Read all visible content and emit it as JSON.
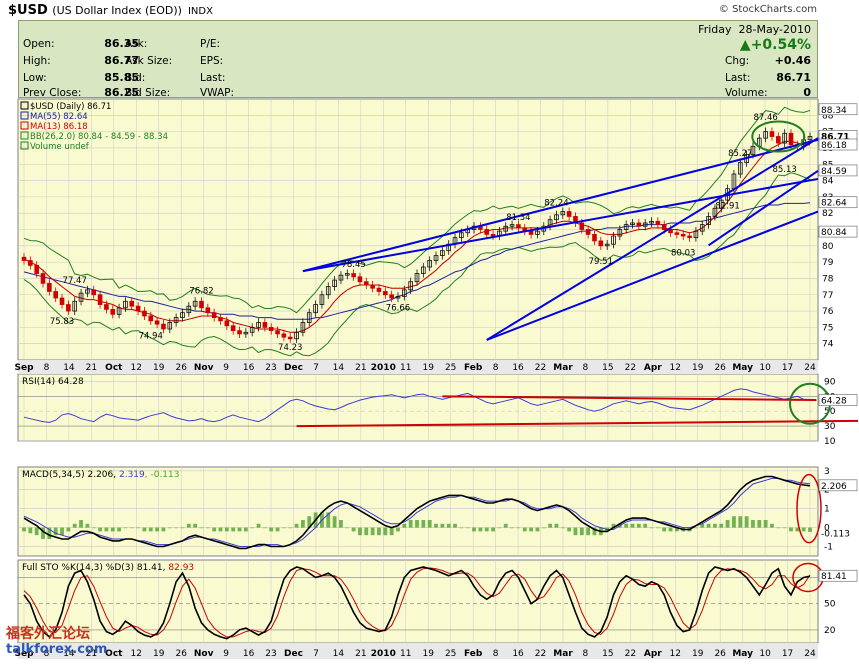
{
  "header": {
    "symbol": "$USD",
    "description": "(US Dollar Index (EOD))",
    "exchange": "INDX",
    "copyright": "© StockCharts.com"
  },
  "quote": {
    "day": "Friday",
    "date": "28-May-2010",
    "change_pct": "▲+0.54%",
    "left": [
      {
        "label": "Open:",
        "value": "86.35"
      },
      {
        "label": "High:",
        "value": "86.77"
      },
      {
        "label": "Low:",
        "value": "85.85"
      },
      {
        "label": "Prev Close:",
        "value": "86.25"
      }
    ],
    "mid": [
      {
        "label": "Ask:"
      },
      {
        "label": "Ask Size:"
      },
      {
        "label": "Bid:"
      },
      {
        "label": "Bid Size:"
      }
    ],
    "mid2": [
      {
        "label": "P/E:"
      },
      {
        "label": "EPS:"
      },
      {
        "label": "Last:"
      },
      {
        "label": "VWAP:"
      }
    ],
    "right": [
      {
        "label": "Chg:",
        "value": "+0.46"
      },
      {
        "label": "Last:",
        "value": "86.71"
      },
      {
        "label": "Volume:",
        "value": "0"
      }
    ]
  },
  "colors": {
    "panel_bg": "#fafad0",
    "grid": "#c8c8c8",
    "price_up": "#111111",
    "price_down": "#d00000",
    "ma55": "#2020a0",
    "ma13": "#d00000",
    "bb": "#208020",
    "trend": "#0000e0",
    "rsi": "#3a3ad8",
    "macd": "#000000",
    "signal": "#3a3ad8",
    "hist": "#50a030",
    "sto_k": "#000000",
    "sto_d": "#d00000",
    "red_line": "#d00000",
    "circle_green": "#208020",
    "circle_red": "#d00000"
  },
  "chart_data": [
    {
      "type": "candlestick",
      "title": "$USD (Daily) 86.71",
      "legend": [
        {
          "text": "$USD (Daily) 86.71",
          "color": "#000000"
        },
        {
          "text": "MA(55) 82.64",
          "color": "#2020a0"
        },
        {
          "text": "MA(13) 86.18",
          "color": "#d00000"
        },
        {
          "text": "BB(26,2.0) 80.84 - 84.59 - 88.34",
          "color": "#208020"
        },
        {
          "text": "Volume undef",
          "color": "#208020"
        }
      ],
      "ylim": [
        73,
        89
      ],
      "y_ticks": [
        74,
        75,
        76,
        77,
        78,
        79,
        80,
        81,
        82,
        83,
        84,
        85,
        86,
        87,
        88
      ],
      "x_labels": [
        "Sep",
        "8",
        "14",
        "21",
        "Oct",
        "12",
        "19",
        "26",
        "Nov",
        "9",
        "16",
        "23",
        "Dec",
        "7",
        "14",
        "21",
        "2010",
        "11",
        "19",
        "25",
        "Feb",
        "8",
        "16",
        "22",
        "Mar",
        "8",
        "15",
        "22",
        "Apr",
        "12",
        "19",
        "26",
        "May",
        "10",
        "17",
        "24"
      ],
      "right_labels": [
        "88.34",
        "86.71",
        "86.18",
        "84.59",
        "82.64",
        "80.84"
      ],
      "annotations": [
        {
          "text": "77.47",
          "x": "Oct",
          "y": 77.47
        },
        {
          "text": "75.83",
          "x": "Oct 7",
          "y": 75.83
        },
        {
          "text": "76.82",
          "x": "Nov 4",
          "y": 76.82
        },
        {
          "text": "74.94",
          "x": "Oct 23",
          "y": 74.94
        },
        {
          "text": "74.23",
          "x": "Nov 26",
          "y": 74.23
        },
        {
          "text": "78.45",
          "x": "Dec 17",
          "y": 78.45
        },
        {
          "text": "76.66",
          "x": "Jan 14",
          "y": 76.66
        },
        {
          "text": "81.34",
          "x": "Feb 16",
          "y": 81.34
        },
        {
          "text": "82.24",
          "x": "Mar 3",
          "y": 82.24
        },
        {
          "text": "79.51",
          "x": "Mar 18",
          "y": 79.51
        },
        {
          "text": "80.03",
          "x": "Apr 15",
          "y": 80.03
        },
        {
          "text": "82.91",
          "x": "May 4",
          "y": 82.91
        },
        {
          "text": "85.27",
          "x": "May 12",
          "y": 85.27
        },
        {
          "text": "87.46",
          "x": "May 18",
          "y": 87.46
        },
        {
          "text": "85.13",
          "x": "May 21",
          "y": 85.13
        }
      ],
      "close": [
        79.1,
        78.8,
        78.3,
        77.7,
        77.2,
        76.8,
        76.4,
        76.0,
        76.6,
        77.1,
        77.3,
        77.0,
        76.4,
        76.1,
        75.8,
        76.2,
        76.6,
        76.3,
        76.0,
        75.7,
        75.4,
        75.2,
        74.9,
        75.3,
        75.6,
        75.9,
        76.3,
        76.6,
        76.2,
        75.9,
        75.6,
        75.4,
        75.1,
        74.8,
        74.6,
        74.7,
        75.0,
        75.3,
        75.0,
        74.8,
        74.6,
        74.4,
        74.3,
        74.7,
        75.3,
        75.9,
        76.4,
        77.0,
        77.5,
        77.9,
        78.2,
        78.3,
        78.1,
        77.8,
        77.6,
        77.4,
        77.2,
        77.0,
        76.8,
        76.9,
        77.3,
        77.8,
        78.3,
        78.7,
        79.1,
        79.4,
        79.7,
        80.1,
        80.5,
        80.8,
        81.0,
        81.2,
        81.0,
        80.7,
        80.6,
        80.9,
        81.2,
        81.3,
        81.1,
        80.9,
        80.7,
        80.9,
        81.2,
        81.6,
        81.9,
        82.1,
        81.8,
        81.4,
        81.0,
        80.7,
        80.3,
        80.0,
        80.1,
        80.6,
        81.0,
        81.3,
        81.4,
        81.2,
        81.4,
        81.5,
        81.3,
        81.0,
        80.8,
        80.7,
        80.6,
        80.5,
        80.9,
        81.3,
        81.8,
        82.3,
        82.8,
        83.5,
        84.4,
        85.1,
        85.6,
        86.1,
        86.6,
        87.0,
        86.7,
        86.3,
        86.9,
        86.2,
        86.1,
        86.5,
        86.7
      ],
      "ma13": [
        79.2,
        79.0,
        78.8,
        78.5,
        78.1,
        77.8,
        77.5,
        77.2,
        76.9,
        76.8,
        76.7,
        76.7,
        76.6,
        76.5,
        76.4,
        76.2,
        76.1,
        76.1,
        76.0,
        75.9,
        75.8,
        75.6,
        75.5,
        75.4,
        75.4,
        75.4,
        75.5,
        75.6,
        75.7,
        75.7,
        75.7,
        75.6,
        75.5,
        75.3,
        75.2,
        75.1,
        75.0,
        74.9,
        74.9,
        74.9,
        74.9,
        74.8,
        74.7,
        74.7,
        74.8,
        75.0,
        75.3,
        75.7,
        76.1,
        76.6,
        77.0,
        77.3,
        77.5,
        77.6,
        77.6,
        77.6,
        77.6,
        77.5,
        77.4,
        77.4,
        77.4,
        77.5,
        77.6,
        77.9,
        78.2,
        78.5,
        78.9,
        79.2,
        79.6,
        79.9,
        80.3,
        80.6,
        80.8,
        80.9,
        81.0,
        81.0,
        81.1,
        81.1,
        81.1,
        81.1,
        81.1,
        81.1,
        81.1,
        81.3,
        81.4,
        81.5,
        81.5,
        81.4,
        81.3,
        81.2,
        81.0,
        80.8,
        80.7,
        80.7,
        80.7,
        80.8,
        80.9,
        81.0,
        81.0,
        81.1,
        81.1,
        81.1,
        81.0,
        81.0,
        80.9,
        80.8,
        80.9,
        81.1,
        81.4,
        81.8,
        82.2,
        82.7,
        83.2,
        83.8,
        84.3,
        84.8,
        85.3,
        85.7,
        86.0,
        86.2,
        86.4,
        86.4,
        86.3,
        86.2,
        86.18
      ],
      "ma55": [
        78.4,
        78.3,
        78.2,
        78.1,
        78.0,
        77.9,
        77.8,
        77.7,
        77.6,
        77.5,
        77.4,
        77.3,
        77.2,
        77.1,
        77.0,
        76.9,
        76.9,
        76.8,
        76.7,
        76.6,
        76.6,
        76.5,
        76.4,
        76.3,
        76.2,
        76.1,
        76.1,
        76.0,
        76.0,
        75.9,
        75.9,
        75.8,
        75.8,
        75.8,
        75.7,
        75.7,
        75.7,
        75.6,
        75.6,
        75.6,
        75.5,
        75.5,
        75.5,
        75.5,
        75.5,
        75.5,
        75.6,
        75.6,
        75.7,
        75.8,
        75.9,
        76.0,
        76.1,
        76.2,
        76.3,
        76.4,
        76.5,
        76.6,
        76.7,
        76.9,
        77.0,
        77.2,
        77.3,
        77.5,
        77.6,
        77.8,
        78.0,
        78.2,
        78.4,
        78.5,
        78.7,
        78.9,
        79.1,
        79.2,
        79.4,
        79.5,
        79.7,
        79.8,
        79.9,
        80.0,
        80.1,
        80.2,
        80.3,
        80.4,
        80.5,
        80.6,
        80.7,
        80.8,
        80.9,
        80.9,
        81.0,
        81.0,
        81.1,
        81.1,
        81.1,
        81.2,
        81.2,
        81.2,
        81.3,
        81.3,
        81.3,
        81.3,
        81.4,
        81.4,
        81.4,
        81.4,
        81.5,
        81.5,
        81.6,
        81.7,
        81.8,
        81.9,
        82.0,
        82.1,
        82.2,
        82.3,
        82.4,
        82.5,
        82.5,
        82.5,
        82.6,
        82.6,
        82.6,
        82.6,
        82.64
      ],
      "trendlines": [
        {
          "x1": 73,
          "y1": 74.23,
          "x2": 140,
          "y2": 86.6
        },
        {
          "x1": 73,
          "y1": 74.23,
          "x2": 140,
          "y2": 82.1
        },
        {
          "x1": 44,
          "y1": 78.45,
          "x2": 140,
          "y2": 84.1
        },
        {
          "x1": 44,
          "y1": 78.45,
          "x2": 140,
          "y2": 86.5
        },
        {
          "x1": 108,
          "y1": 80.03,
          "x2": 140,
          "y2": 84.6
        }
      ]
    },
    {
      "type": "line",
      "title": "RSI(14) 64.28",
      "ylim": [
        10,
        100
      ],
      "y_ticks": [
        90,
        70,
        50,
        30,
        10
      ],
      "right_labels": [
        "64.28"
      ],
      "values": [
        42,
        40,
        38,
        36,
        35,
        38,
        45,
        47,
        44,
        40,
        38,
        36,
        42,
        46,
        44,
        41,
        40,
        39,
        38,
        41,
        44,
        46,
        48,
        44,
        41,
        39,
        37,
        38,
        40,
        37,
        36,
        38,
        42,
        45,
        42,
        40,
        38,
        36,
        40,
        46,
        52,
        58,
        64,
        66,
        64,
        60,
        57,
        55,
        53,
        52,
        55,
        59,
        62,
        65,
        67,
        69,
        70,
        71,
        72,
        70,
        68,
        70,
        72,
        73,
        70,
        68,
        66,
        68,
        70,
        72,
        74,
        70,
        66,
        62,
        60,
        62,
        64,
        66,
        68,
        64,
        60,
        58,
        60,
        62,
        64,
        66,
        62,
        58,
        55,
        52,
        50,
        52,
        56,
        60,
        62,
        64,
        62,
        60,
        62,
        63,
        61,
        58,
        55,
        54,
        53,
        52,
        55,
        58,
        62,
        66,
        70,
        74,
        78,
        80,
        79,
        76,
        74,
        72,
        70,
        68,
        66,
        68,
        70,
        66,
        65,
        64.28
      ]
    },
    {
      "type": "line",
      "title": "MACD(5,34,5) 2.206, 2.319, -0.113",
      "ylim": [
        -1.5,
        3.2
      ],
      "y_ticks": [
        3,
        2,
        1,
        0,
        -1
      ],
      "right_labels": [
        "2.206",
        "-0.113"
      ],
      "macd": [
        0.5,
        0.3,
        0.1,
        -0.2,
        -0.4,
        -0.5,
        -0.6,
        -0.6,
        -0.4,
        -0.2,
        -0.2,
        -0.3,
        -0.5,
        -0.6,
        -0.7,
        -0.7,
        -0.6,
        -0.6,
        -0.7,
        -0.8,
        -0.9,
        -1.0,
        -1.0,
        -0.9,
        -0.8,
        -0.7,
        -0.5,
        -0.4,
        -0.5,
        -0.6,
        -0.7,
        -0.8,
        -0.9,
        -1.0,
        -1.1,
        -1.1,
        -1.0,
        -0.9,
        -0.9,
        -1.0,
        -1.0,
        -1.0,
        -0.9,
        -0.7,
        -0.4,
        0.0,
        0.4,
        0.8,
        1.1,
        1.3,
        1.4,
        1.3,
        1.1,
        0.9,
        0.7,
        0.5,
        0.3,
        0.1,
        0.0,
        0.1,
        0.4,
        0.7,
        1.0,
        1.2,
        1.4,
        1.5,
        1.6,
        1.7,
        1.7,
        1.7,
        1.6,
        1.5,
        1.4,
        1.3,
        1.3,
        1.4,
        1.5,
        1.5,
        1.4,
        1.2,
        1.0,
        0.9,
        1.0,
        1.1,
        1.2,
        1.1,
        0.9,
        0.6,
        0.3,
        0.1,
        -0.1,
        -0.2,
        -0.2,
        0.0,
        0.2,
        0.4,
        0.5,
        0.5,
        0.5,
        0.4,
        0.3,
        0.2,
        0.1,
        0.0,
        -0.1,
        -0.1,
        0.1,
        0.3,
        0.5,
        0.7,
        0.9,
        1.2,
        1.6,
        2.0,
        2.3,
        2.5,
        2.6,
        2.7,
        2.7,
        2.6,
        2.5,
        2.4,
        2.3,
        2.25,
        2.206
      ],
      "signal": [
        0.6,
        0.45,
        0.3,
        0.1,
        -0.1,
        -0.3,
        -0.4,
        -0.5,
        -0.5,
        -0.4,
        -0.3,
        -0.3,
        -0.4,
        -0.5,
        -0.6,
        -0.6,
        -0.6,
        -0.6,
        -0.7,
        -0.7,
        -0.8,
        -0.9,
        -0.9,
        -0.9,
        -0.8,
        -0.7,
        -0.6,
        -0.5,
        -0.5,
        -0.6,
        -0.6,
        -0.7,
        -0.8,
        -0.9,
        -1.0,
        -1.0,
        -1.0,
        -1.0,
        -0.9,
        -0.9,
        -0.9,
        -1.0,
        -0.9,
        -0.8,
        -0.6,
        -0.3,
        0.0,
        0.4,
        0.7,
        1.0,
        1.2,
        1.3,
        1.2,
        1.1,
        0.9,
        0.7,
        0.5,
        0.3,
        0.2,
        0.2,
        0.3,
        0.5,
        0.8,
        1.0,
        1.2,
        1.4,
        1.5,
        1.6,
        1.6,
        1.7,
        1.6,
        1.6,
        1.5,
        1.4,
        1.4,
        1.4,
        1.4,
        1.5,
        1.4,
        1.3,
        1.1,
        1.0,
        1.0,
        1.0,
        1.1,
        1.1,
        1.0,
        0.8,
        0.5,
        0.3,
        0.1,
        0.0,
        -0.1,
        -0.1,
        0.1,
        0.3,
        0.4,
        0.4,
        0.4,
        0.4,
        0.3,
        0.3,
        0.2,
        0.1,
        0.0,
        0.0,
        0.1,
        0.2,
        0.4,
        0.6,
        0.8,
        1.0,
        1.3,
        1.7,
        2.0,
        2.3,
        2.4,
        2.5,
        2.6,
        2.6,
        2.5,
        2.5,
        2.4,
        2.35,
        2.319
      ]
    },
    {
      "type": "line",
      "title": "Full STO %K(14,3) %D(3) 81.41, 82.93",
      "ylim": [
        5,
        100
      ],
      "y_ticks": [
        80,
        50,
        20
      ],
      "right_labels": [
        "81.41"
      ],
      "k": [
        60,
        50,
        30,
        18,
        12,
        20,
        40,
        70,
        85,
        88,
        75,
        55,
        30,
        18,
        15,
        20,
        30,
        25,
        18,
        14,
        12,
        16,
        28,
        50,
        75,
        85,
        70,
        45,
        28,
        20,
        15,
        12,
        10,
        14,
        20,
        22,
        18,
        14,
        18,
        30,
        55,
        78,
        88,
        92,
        90,
        85,
        80,
        82,
        85,
        80,
        70,
        55,
        40,
        28,
        22,
        20,
        18,
        20,
        35,
        60,
        80,
        88,
        90,
        92,
        90,
        88,
        85,
        82,
        85,
        88,
        82,
        70,
        60,
        55,
        60,
        75,
        85,
        88,
        80,
        65,
        50,
        55,
        70,
        82,
        88,
        80,
        60,
        40,
        22,
        15,
        12,
        18,
        35,
        60,
        75,
        82,
        78,
        72,
        70,
        75,
        72,
        60,
        40,
        25,
        18,
        20,
        40,
        65,
        85,
        92,
        90,
        88,
        90,
        86,
        80,
        70,
        60,
        72,
        85,
        90,
        70,
        60,
        75,
        80,
        81.41
      ],
      "d": [
        65,
        58,
        45,
        30,
        18,
        17,
        25,
        45,
        65,
        80,
        82,
        70,
        52,
        35,
        22,
        18,
        22,
        25,
        23,
        18,
        15,
        14,
        20,
        32,
        52,
        70,
        78,
        68,
        50,
        32,
        22,
        16,
        12,
        12,
        15,
        18,
        20,
        18,
        17,
        22,
        36,
        58,
        76,
        88,
        90,
        89,
        86,
        82,
        82,
        82,
        78,
        68,
        55,
        40,
        30,
        24,
        20,
        19,
        25,
        40,
        60,
        78,
        86,
        90,
        91,
        90,
        88,
        85,
        84,
        85,
        85,
        80,
        70,
        62,
        58,
        62,
        72,
        82,
        84,
        78,
        65,
        55,
        58,
        68,
        80,
        84,
        76,
        60,
        40,
        26,
        17,
        15,
        22,
        38,
        58,
        72,
        78,
        77,
        73,
        72,
        72,
        68,
        57,
        42,
        28,
        21,
        26,
        42,
        63,
        80,
        88,
        90,
        89,
        88,
        85,
        78,
        70,
        67,
        72,
        82,
        82,
        73,
        68,
        72,
        82.93
      ]
    }
  ]
}
